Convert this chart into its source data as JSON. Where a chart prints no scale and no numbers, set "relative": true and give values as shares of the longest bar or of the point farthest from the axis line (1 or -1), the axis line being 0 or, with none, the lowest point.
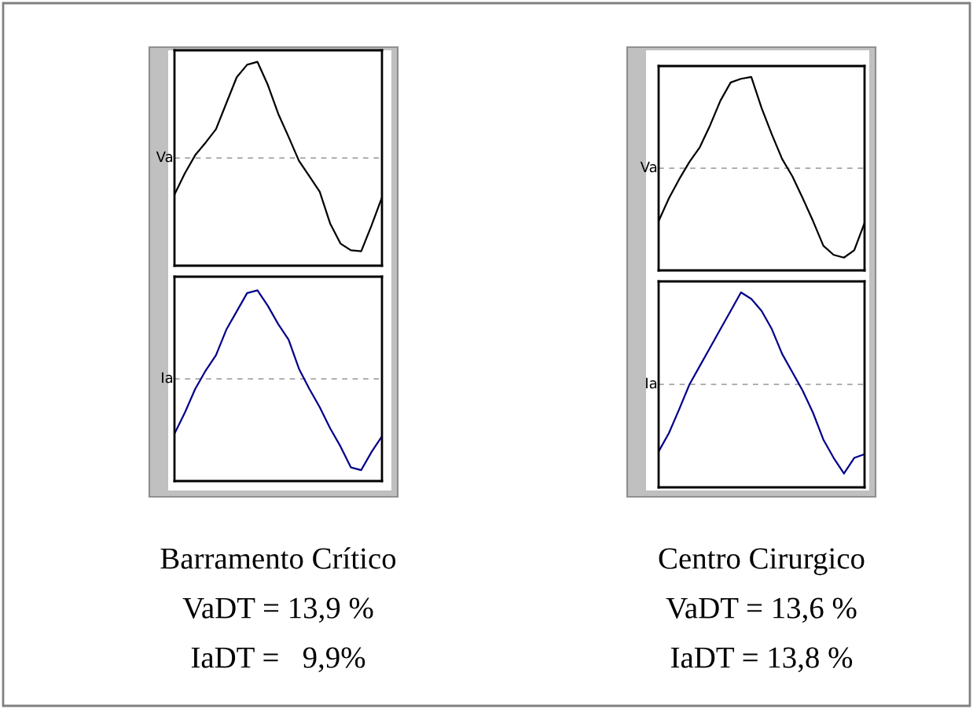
{
  "chart_data": [
    {
      "type": "line",
      "relative": true,
      "ylabel": "Va",
      "ref_lines": [
        {
          "axis": "y",
          "value": 0,
          "color": "#b0b0b0",
          "line_style": "dashed"
        }
      ],
      "categories": [
        null,
        null,
        null,
        null,
        null,
        null,
        null,
        null,
        null,
        null,
        null,
        null,
        null,
        null,
        null,
        null,
        null,
        null,
        null,
        null,
        null
      ],
      "series": [
        {
          "color": "#000000",
          "values": [
            -0.38,
            -0.16,
            0.03,
            0.16,
            0.3,
            0.57,
            0.84,
            0.97,
            1.0,
            0.76,
            0.46,
            0.22,
            -0.03,
            -0.19,
            -0.35,
            -0.68,
            -0.89,
            -0.96,
            -0.97,
            -0.7,
            -0.41
          ]
        }
      ]
    },
    {
      "type": "line",
      "relative": true,
      "ylabel": "Ia",
      "ref_lines": [
        {
          "axis": "y",
          "value": 0,
          "color": "#b0b0b0",
          "line_style": "dashed"
        }
      ],
      "categories": [
        null,
        null,
        null,
        null,
        null,
        null,
        null,
        null,
        null,
        null,
        null,
        null,
        null,
        null,
        null,
        null,
        null,
        null,
        null,
        null,
        null
      ],
      "series": [
        {
          "color": "#00008b",
          "values": [
            -0.6,
            -0.37,
            -0.11,
            0.09,
            0.26,
            0.54,
            0.74,
            0.94,
            0.97,
            0.8,
            0.6,
            0.43,
            0.11,
            -0.11,
            -0.31,
            -0.54,
            -0.74,
            -0.97,
            -1.0,
            -0.8,
            -0.63
          ]
        }
      ],
      "annotations": [
        "Barramento Crítico",
        "VaDT = 13,9 %",
        "IaDT =   9,9%"
      ]
    },
    {
      "type": "line",
      "relative": true,
      "ylabel": "Va",
      "ref_lines": [
        {
          "axis": "y",
          "value": 0,
          "color": "#b0b0b0",
          "line_style": "dashed"
        }
      ],
      "categories": [
        null,
        null,
        null,
        null,
        null,
        null,
        null,
        null,
        null,
        null,
        null,
        null,
        null,
        null,
        null,
        null,
        null,
        null,
        null,
        null,
        null
      ],
      "series": [
        {
          "color": "#000000",
          "values": [
            -0.58,
            -0.33,
            -0.12,
            0.07,
            0.23,
            0.47,
            0.74,
            0.94,
            0.98,
            1.0,
            0.66,
            0.37,
            0.1,
            -0.09,
            -0.33,
            -0.58,
            -0.85,
            -0.95,
            -0.98,
            -0.9,
            -0.6
          ]
        }
      ]
    },
    {
      "type": "line",
      "relative": true,
      "ylabel": "Ia",
      "ref_lines": [
        {
          "axis": "y",
          "value": 0,
          "color": "#b0b0b0",
          "line_style": "dashed"
        }
      ],
      "categories": [
        null,
        null,
        null,
        null,
        null,
        null,
        null,
        null,
        null,
        null,
        null,
        null,
        null,
        null,
        null,
        null,
        null,
        null,
        null,
        null,
        null
      ],
      "series": [
        {
          "color": "#00008b",
          "values": [
            -0.73,
            -0.53,
            -0.27,
            0.0,
            0.2,
            0.4,
            0.6,
            0.8,
            1.0,
            0.93,
            0.8,
            0.6,
            0.33,
            0.13,
            -0.07,
            -0.31,
            -0.6,
            -0.8,
            -0.97,
            -0.8,
            -0.76
          ]
        }
      ],
      "annotations": [
        "Centro Cirurgico",
        "VaDT = 13,6 %",
        "IaDT = 13,8 %"
      ]
    }
  ]
}
